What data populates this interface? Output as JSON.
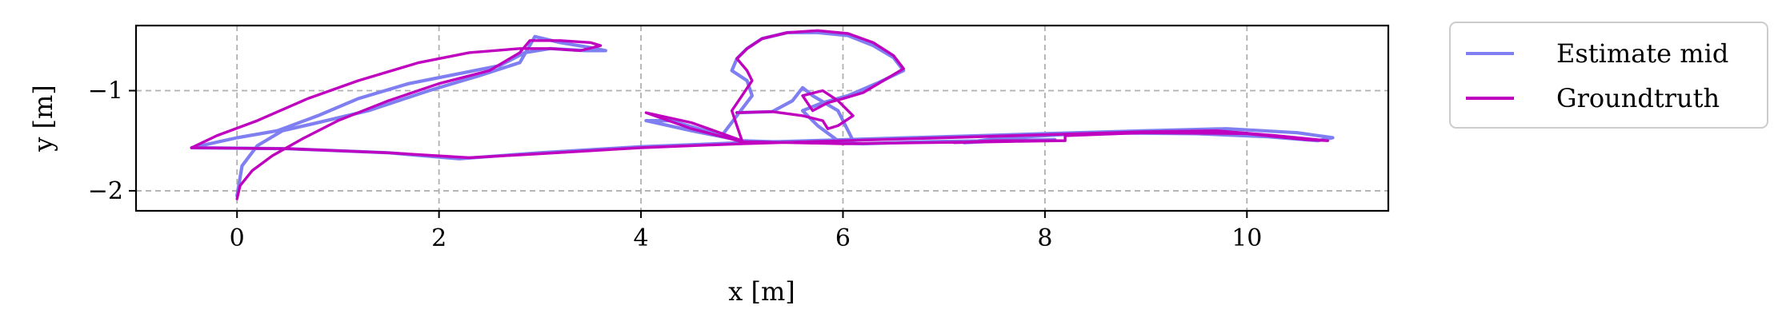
{
  "chart_data": {
    "type": "line",
    "xlabel": "x [m]",
    "ylabel": "y [m]",
    "xlim": [
      -1.0,
      11.4
    ],
    "ylim": [
      -2.2,
      -0.35
    ],
    "xticks": [
      0,
      2,
      4,
      6,
      8,
      10
    ],
    "xtick_labels": [
      "0",
      "2",
      "4",
      "6",
      "8",
      "10"
    ],
    "yticks": [
      -1,
      -2
    ],
    "ytick_labels": [
      "−1",
      "−2"
    ],
    "grid": true,
    "legend": {
      "placement": "outside-top-right"
    },
    "series": [
      {
        "name": "Estimate mid",
        "color": "#7f7ff2",
        "x": [
          0.0,
          0.05,
          0.2,
          0.45,
          0.8,
          1.3,
          1.9,
          2.4,
          2.8,
          2.95,
          3.2,
          3.5,
          3.65,
          3.45,
          3.1,
          2.85,
          2.6,
          2.2,
          1.7,
          1.2,
          0.8,
          0.4,
          0.0,
          -0.45,
          0.5,
          1.5,
          2.2,
          3.0,
          4.0,
          5.0,
          6.0,
          7.0,
          8.0,
          9.0,
          9.8,
          10.5,
          10.85,
          10.7,
          10.2,
          9.5,
          8.5,
          8.0,
          7.5,
          7.2,
          7.6,
          8.1,
          7.5,
          6.8,
          6.2,
          5.8,
          5.3,
          5.0,
          4.5,
          4.05,
          4.3,
          4.8,
          4.95,
          5.1,
          5.05,
          4.9,
          4.95,
          5.05,
          5.2,
          5.45,
          5.75,
          6.05,
          6.3,
          6.5,
          6.6,
          6.35,
          6.05,
          5.8,
          5.6,
          5.75,
          5.95,
          6.1,
          5.95,
          5.7,
          5.6,
          5.5,
          5.3,
          4.95
        ],
        "y": [
          -2.05,
          -1.75,
          -1.55,
          -1.4,
          -1.32,
          -1.2,
          -1.0,
          -0.85,
          -0.72,
          -0.46,
          -0.52,
          -0.57,
          -0.6,
          -0.6,
          -0.58,
          -0.62,
          -0.75,
          -0.83,
          -0.93,
          -1.08,
          -1.25,
          -1.4,
          -1.47,
          -1.57,
          -1.58,
          -1.62,
          -1.68,
          -1.62,
          -1.56,
          -1.52,
          -1.49,
          -1.46,
          -1.43,
          -1.4,
          -1.38,
          -1.42,
          -1.47,
          -1.5,
          -1.46,
          -1.43,
          -1.42,
          -1.45,
          -1.48,
          -1.52,
          -1.5,
          -1.49,
          -1.5,
          -1.51,
          -1.53,
          -1.52,
          -1.51,
          -1.5,
          -1.4,
          -1.3,
          -1.3,
          -1.45,
          -1.25,
          -1.05,
          -0.9,
          -0.8,
          -0.68,
          -0.58,
          -0.48,
          -0.42,
          -0.42,
          -0.45,
          -0.55,
          -0.67,
          -0.8,
          -0.92,
          -1.05,
          -1.12,
          -1.2,
          -1.35,
          -1.5,
          -1.5,
          -1.2,
          -1.05,
          -0.97,
          -1.1,
          -1.21,
          -1.22
        ]
      },
      {
        "name": "Groundtruth",
        "color": "#bf00bf",
        "x": [
          0.0,
          0.03,
          0.15,
          0.35,
          0.65,
          1.0,
          1.5,
          2.0,
          2.5,
          2.8,
          2.9,
          3.2,
          3.5,
          3.6,
          3.4,
          3.1,
          2.8,
          2.3,
          1.8,
          1.2,
          0.7,
          0.2,
          -0.2,
          -0.45,
          0.5,
          1.5,
          2.3,
          3.0,
          4.0,
          5.0,
          6.0,
          7.0,
          8.0,
          9.0,
          9.7,
          10.3,
          10.8,
          10.6,
          10.0,
          9.0,
          8.2,
          8.2,
          7.5,
          7.1,
          7.8,
          8.2,
          7.5,
          6.8,
          6.0,
          5.5,
          5.0,
          4.5,
          4.05,
          4.5,
          5.0,
          4.95,
          4.9,
          5.0,
          5.1,
          5.05,
          4.95,
          5.05,
          5.2,
          5.45,
          5.75,
          6.05,
          6.3,
          6.5,
          6.6,
          6.4,
          6.2,
          6.0,
          5.85,
          5.7,
          5.6,
          5.8,
          5.95,
          6.1,
          5.95,
          5.85,
          5.8,
          5.6,
          5.3,
          4.95
        ],
        "y": [
          -2.08,
          -1.95,
          -1.8,
          -1.65,
          -1.48,
          -1.3,
          -1.1,
          -0.93,
          -0.8,
          -0.62,
          -0.5,
          -0.5,
          -0.52,
          -0.55,
          -0.6,
          -0.58,
          -0.58,
          -0.62,
          -0.72,
          -0.9,
          -1.08,
          -1.3,
          -1.45,
          -1.57,
          -1.58,
          -1.62,
          -1.67,
          -1.63,
          -1.57,
          -1.53,
          -1.5,
          -1.47,
          -1.44,
          -1.41,
          -1.4,
          -1.45,
          -1.5,
          -1.49,
          -1.43,
          -1.42,
          -1.45,
          -1.5,
          -1.5,
          -1.52,
          -1.5,
          -1.5,
          -1.51,
          -1.52,
          -1.53,
          -1.52,
          -1.51,
          -1.38,
          -1.22,
          -1.32,
          -1.5,
          -1.35,
          -1.2,
          -1.05,
          -0.9,
          -0.8,
          -0.68,
          -0.58,
          -0.48,
          -0.42,
          -0.4,
          -0.43,
          -0.52,
          -0.65,
          -0.78,
          -0.9,
          -1.02,
          -1.08,
          -1.12,
          -1.2,
          -1.05,
          -1.0,
          -1.1,
          -1.25,
          -1.35,
          -1.38,
          -1.3,
          -1.25,
          -1.21,
          -1.22
        ]
      }
    ]
  }
}
